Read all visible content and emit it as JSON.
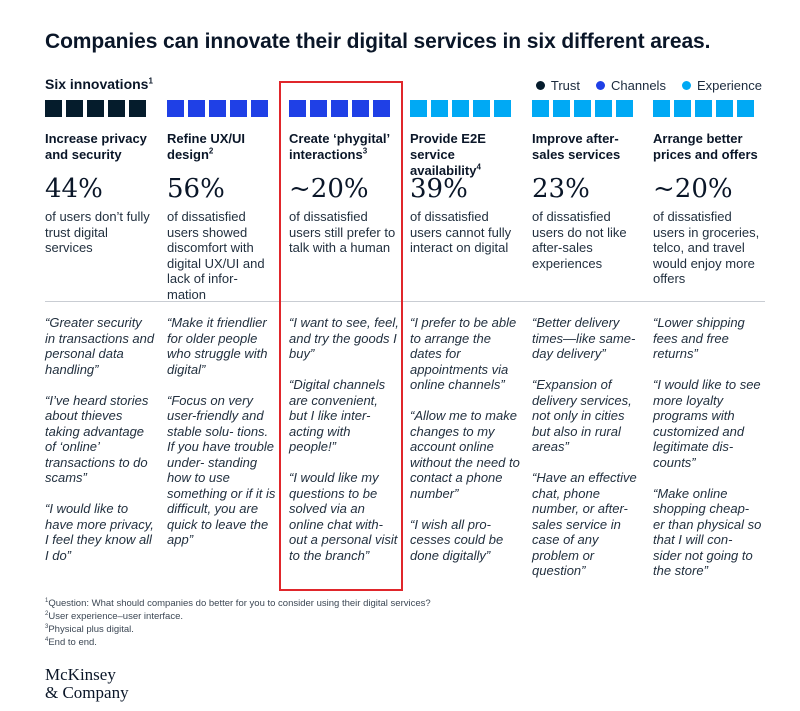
{
  "title": "Companies can innovate their digital services in six different areas.",
  "section": {
    "label": "Six innovations",
    "footnote_ref": "1"
  },
  "legend": [
    {
      "label": "Trust",
      "color": "#051c2c"
    },
    {
      "label": "Channels",
      "color": "#1f40e6"
    },
    {
      "label": "Experience",
      "color": "#00a9f4"
    }
  ],
  "columns": [
    {
      "category": "Trust",
      "color": "#051c2c",
      "title": "Increase privacy and security",
      "title_sup": "",
      "stat": "44%",
      "desc": "of users don’t fully trust digital services",
      "quotes": [
        "“Greater security in transactions and personal data handling”",
        "“I’ve heard stories about thieves taking advantage of ‘online’ transactions to do scams”",
        "“I would like to have more privacy, I feel they know all I do”"
      ]
    },
    {
      "category": "Channels",
      "color": "#1f40e6",
      "title": "Refine UX/UI design",
      "title_sup": "2",
      "stat": "56%",
      "desc": "of dissatisfied users showed discomfort with digital UX/UI and lack of infor- mation",
      "quotes": [
        "“Make it friendlier for older people who struggle with digital”",
        "“Focus on very user-friendly and stable solu- tions. If you have trouble under- standing how to use something or if it is difficult, you are quick to leave the app”"
      ]
    },
    {
      "category": "Channels",
      "color": "#1f40e6",
      "title": "Create ‘phygital’ interactions",
      "title_sup": "3",
      "stat": "~20%",
      "desc": "of dissatisfied users still prefer to talk with a human",
      "quotes": [
        "“I want to see, feel, and try the goods I buy”",
        "“Digital channels are convenient, but I like inter- acting with people!”",
        "“I would like my questions to be solved via an online chat with- out a personal visit to the branch”"
      ]
    },
    {
      "category": "Experience",
      "color": "#00a9f4",
      "title": "Provide E2E service availability",
      "title_sup": "4",
      "stat": "39%",
      "desc": "of dissatisfied users cannot fully interact on digital",
      "quotes": [
        "“I prefer to be able to arrange the dates for appointments via online channels”",
        "“Allow me to make changes to my account online without the need to contact a phone number”",
        "“I wish all pro- cesses could be done digitally”"
      ]
    },
    {
      "category": "Experience",
      "color": "#00a9f4",
      "title": "Improve after- sales services",
      "title_sup": "",
      "stat": "23%",
      "desc": "of dissatisfied users do not like after-sales experiences",
      "quotes": [
        "“Better delivery times—like same- day delivery”",
        "“Expansion of delivery services, not only in cities but also in rural areas”",
        "“Have an effective chat, phone number, or after-sales service in case of any problem or question”"
      ]
    },
    {
      "category": "Experience",
      "color": "#00a9f4",
      "title": "Arrange better prices and offers",
      "title_sup": "",
      "stat": "~20%",
      "desc": "of dissatisfied users in groceries, telco, and travel would enjoy more offers",
      "quotes": [
        "“Lower shipping fees and free returns”",
        "“I would like to see more loyalty programs with customized and legitimate dis- counts”",
        "“Make online shopping cheap- er than physical so that I will con- sider not going to the store”"
      ]
    }
  ],
  "footnotes": [
    {
      "num": "1",
      "text": "Question: What should companies do better for you to consider using their digital services?"
    },
    {
      "num": "2",
      "text": "User experience–user interface."
    },
    {
      "num": "3",
      "text": "Physical plus digital."
    },
    {
      "num": "4",
      "text": "End to end."
    }
  ],
  "logo": {
    "line1": "McKinsey",
    "line2": "& Company"
  },
  "highlight_color": "#e0262b"
}
